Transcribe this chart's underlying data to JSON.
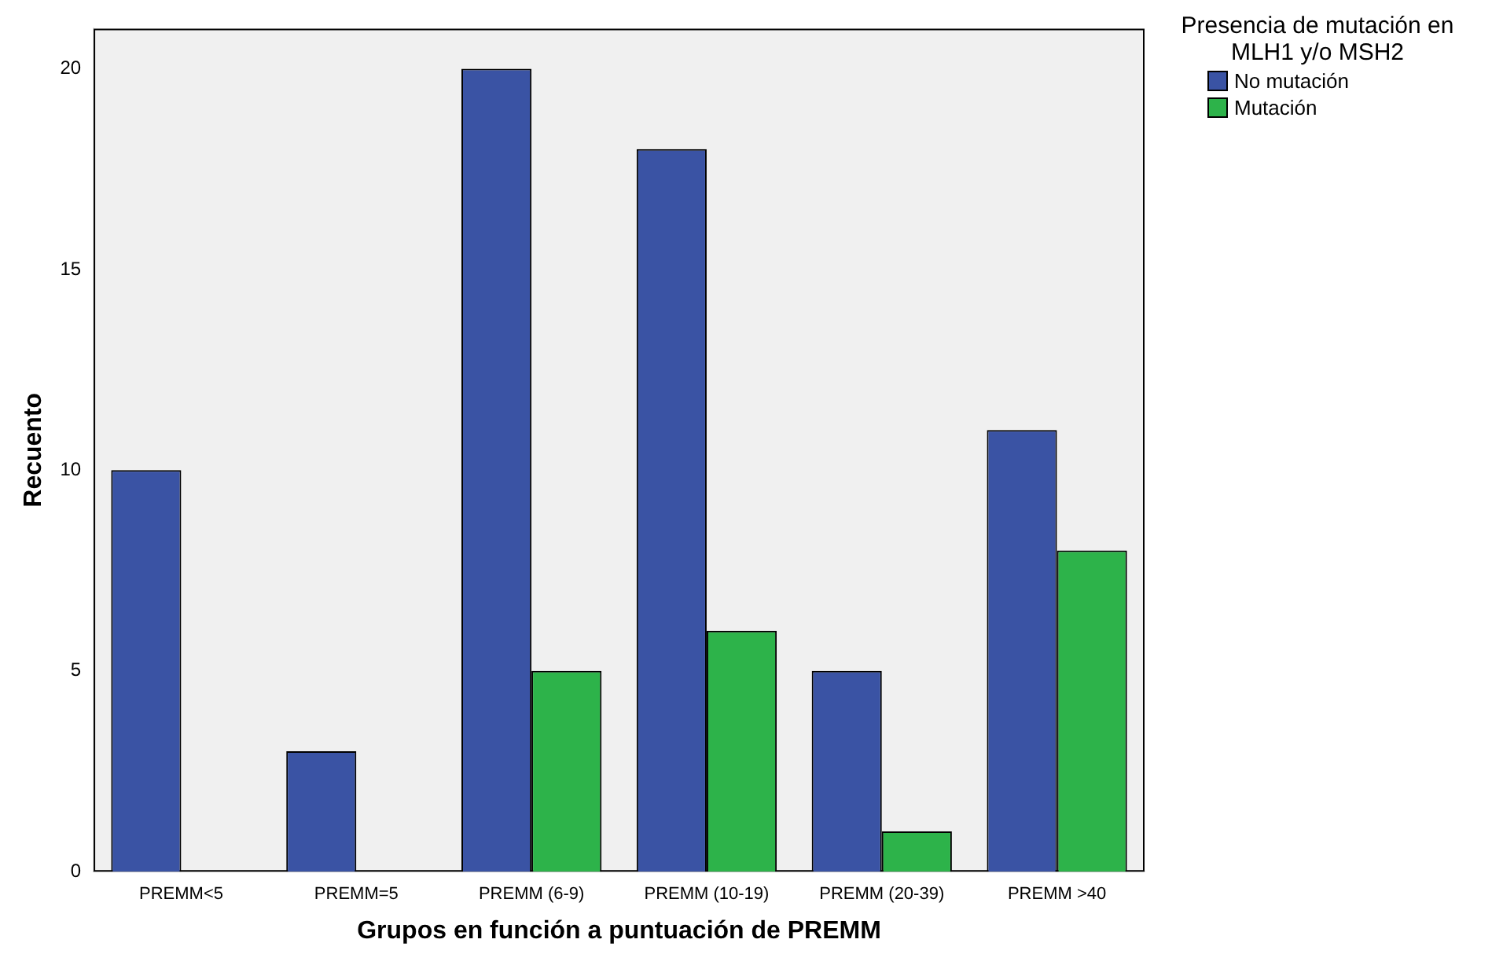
{
  "chart_data": {
    "type": "bar",
    "xlabel": "Grupos en función a puntuación de PREMM",
    "ylabel": "Recuento",
    "legend_title": "Presencia de mutación en MLH1 y/o MSH2",
    "categories": [
      "PREMM<5",
      "PREMM=5",
      "PREMM (6-9)",
      "PREMM (10-19)",
      "PREMM (20-39)",
      "PREMM >40"
    ],
    "series": [
      {
        "name": "No mutación",
        "color": "#3a53a4",
        "values": [
          10,
          3,
          20,
          18,
          5,
          11
        ]
      },
      {
        "name": "Mutación",
        "color": "#2db34a",
        "values": [
          0,
          0,
          5,
          6,
          1,
          8
        ]
      }
    ],
    "ylim": [
      0,
      21
    ],
    "yticks": [
      0,
      5,
      10,
      15,
      20
    ],
    "grid": false,
    "legend": "top right"
  }
}
